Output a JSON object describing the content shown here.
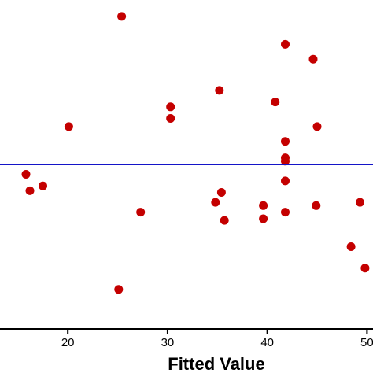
{
  "chart_data": {
    "type": "scatter",
    "title": "",
    "xlabel": "Fitted Value",
    "ylabel": "",
    "xlim": [
      13.2,
      50.6
    ],
    "ylim": [
      -1.0,
      1.0
    ],
    "x_ticks": [
      20,
      30,
      40,
      50
    ],
    "x_tick_labels": [
      "20",
      "30",
      "40",
      "50"
    ],
    "reference_line": {
      "y": 0,
      "color": "#1414c8"
    },
    "point_color": "#c40000",
    "axis_color": "#000000",
    "grid": false,
    "points": [
      {
        "x": 25.4,
        "y": 0.9
      },
      {
        "x": 41.8,
        "y": 0.73
      },
      {
        "x": 44.6,
        "y": 0.64
      },
      {
        "x": 35.2,
        "y": 0.45
      },
      {
        "x": 40.8,
        "y": 0.38
      },
      {
        "x": 30.3,
        "y": 0.35
      },
      {
        "x": 30.3,
        "y": 0.28
      },
      {
        "x": 20.1,
        "y": 0.23
      },
      {
        "x": 45.0,
        "y": 0.23
      },
      {
        "x": 41.8,
        "y": 0.14
      },
      {
        "x": 41.8,
        "y": 0.04
      },
      {
        "x": 41.8,
        "y": 0.02
      },
      {
        "x": 15.8,
        "y": -0.06
      },
      {
        "x": 41.8,
        "y": -0.1
      },
      {
        "x": 16.2,
        "y": -0.16
      },
      {
        "x": 17.5,
        "y": -0.13
      },
      {
        "x": 35.4,
        "y": -0.17
      },
      {
        "x": 34.8,
        "y": -0.23
      },
      {
        "x": 39.6,
        "y": -0.25
      },
      {
        "x": 49.3,
        "y": -0.23
      },
      {
        "x": 27.3,
        "y": -0.29
      },
      {
        "x": 41.8,
        "y": -0.29
      },
      {
        "x": 44.9,
        "y": -0.25
      },
      {
        "x": 35.7,
        "y": -0.34
      },
      {
        "x": 39.6,
        "y": -0.33
      },
      {
        "x": 48.4,
        "y": -0.5
      },
      {
        "x": 49.8,
        "y": -0.63
      },
      {
        "x": 25.1,
        "y": -0.76
      }
    ]
  }
}
